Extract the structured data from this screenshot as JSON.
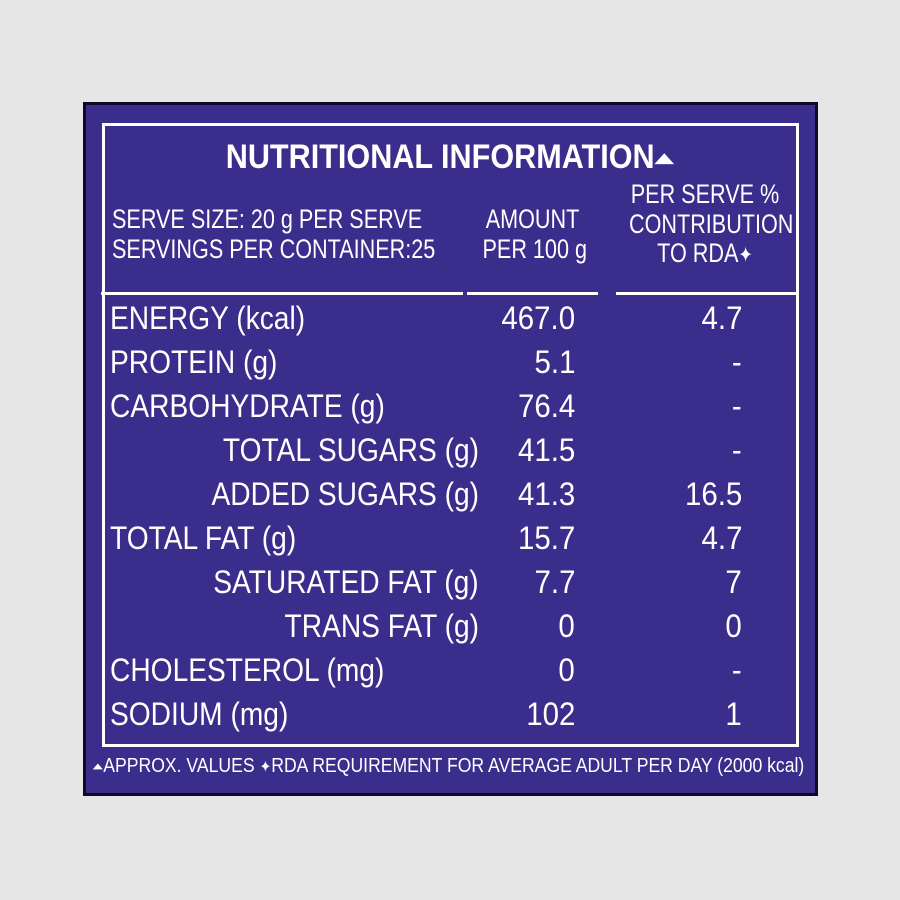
{
  "panel": {
    "title": "NUTRITIONAL INFORMATION",
    "title_mark": "⏶",
    "serve_size": "SERVE SIZE: 20 g PER SERVE",
    "servings": "SERVINGS PER CONTAINER:25",
    "col_amount_line1": "AMOUNT",
    "col_amount_line2": "PER 100 g",
    "col_rda_line1": "PER SERVE %",
    "col_rda_line2": "CONTRIBUTION",
    "col_rda_line3": "TO RDA",
    "col_rda_mark": "✦",
    "rows": [
      {
        "label": "ENERGY (kcal)",
        "amount": "467.0",
        "rda": "4.7"
      },
      {
        "label": "PROTEIN (g)",
        "amount": "5.1",
        "rda": "-"
      },
      {
        "label": "CARBOHYDRATE (g)",
        "amount": "76.4",
        "rda": "-"
      },
      {
        "label": "TOTAL SUGARS (g)",
        "amount": "41.5",
        "rda": "-"
      },
      {
        "label": "ADDED SUGARS (g)",
        "amount": "41.3",
        "rda": "16.5"
      },
      {
        "label": "TOTAL FAT (g)",
        "amount": "15.7",
        "rda": "4.7"
      },
      {
        "label": "SATURATED FAT (g)",
        "amount": "7.7",
        "rda": "7"
      },
      {
        "label": "TRANS FAT (g)",
        "amount": "0",
        "rda": "0"
      },
      {
        "label": "CHOLESTEROL (mg)",
        "amount": "0",
        "rda": "-"
      },
      {
        "label": "SODIUM (mg)",
        "amount": "102",
        "rda": "1"
      }
    ],
    "footer_mark1": "⏶",
    "footer_part1": "APPROX. VALUES",
    "footer_mark2": "✦",
    "footer_part2": "RDA REQUIREMENT FOR AVERAGE ADULT PER DAY (2000 kcal)"
  },
  "colors": {
    "panel_bg": "#3a2d8c",
    "text": "#ffffff",
    "page_bg": "#e6e6e6"
  }
}
